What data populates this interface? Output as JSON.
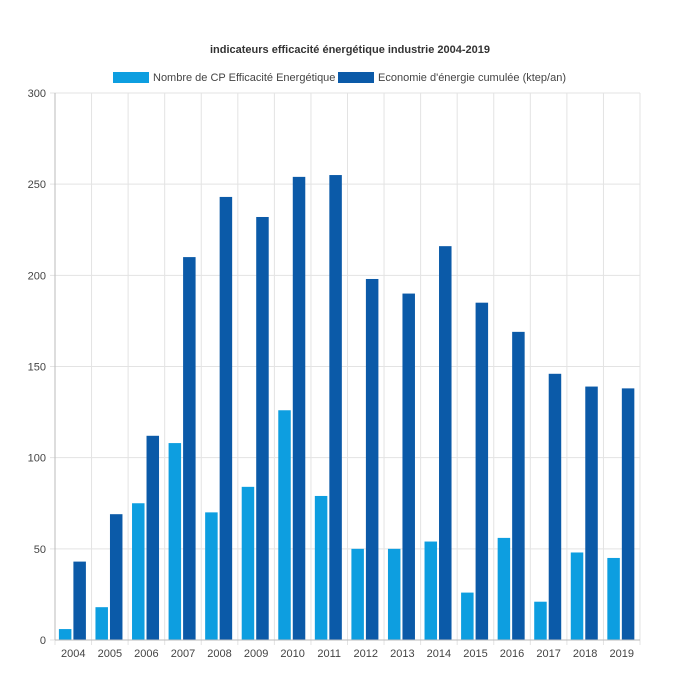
{
  "chart_data": {
    "type": "bar",
    "title": "indicateurs efficacité énergétique industrie 2004-2019",
    "categories": [
      "2004",
      "2005",
      "2006",
      "2007",
      "2008",
      "2009",
      "2010",
      "2011",
      "2012",
      "2013",
      "2014",
      "2015",
      "2016",
      "2017",
      "2018",
      "2019"
    ],
    "series": [
      {
        "name": "Nombre de CP Efficacité Energétique",
        "color": "#0d9ee0",
        "values": [
          6,
          18,
          75,
          108,
          70,
          84,
          126,
          79,
          50,
          50,
          54,
          26,
          56,
          21,
          48,
          45
        ]
      },
      {
        "name": "Economie d'énergie cumulée (ktep/an)",
        "color": "#0b5aa8",
        "values": [
          43,
          69,
          112,
          210,
          243,
          232,
          254,
          255,
          198,
          190,
          216,
          185,
          169,
          146,
          139,
          138
        ]
      }
    ],
    "y_ticks": [
      "0",
      "50",
      "100",
      "150",
      "200",
      "250",
      "300"
    ],
    "ylim": [
      0,
      300
    ],
    "grid": true,
    "legend_position": "top"
  }
}
